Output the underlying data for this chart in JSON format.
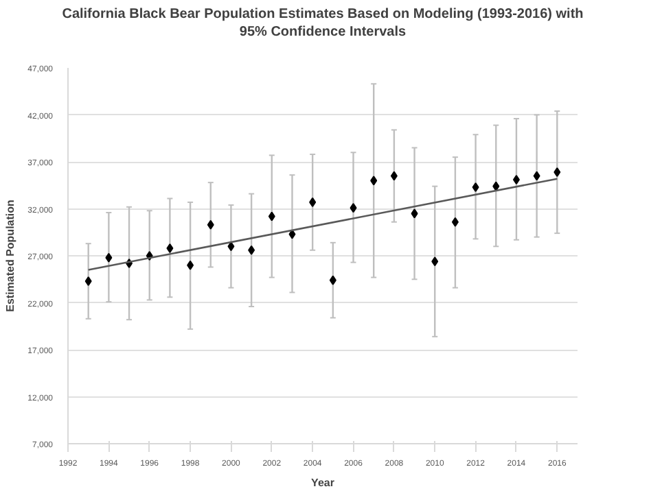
{
  "chart_data": {
    "type": "scatter",
    "title": "California Black Bear Population Estimates Based on Modeling (1993-2016) with 95% Confidence Intervals",
    "xlabel": "Year",
    "ylabel": "Estimated Population",
    "xlim": [
      1992,
      2017
    ],
    "xticks": [
      1992,
      1994,
      1996,
      1998,
      2000,
      2002,
      2004,
      2006,
      2008,
      2010,
      2012,
      2014,
      2016
    ],
    "ylim": [
      7000,
      47000
    ],
    "yticks": [
      {
        "value": 7000,
        "label": "7,000"
      },
      {
        "value": 12000,
        "label": "12,000"
      },
      {
        "value": 17000,
        "label": "17,000"
      },
      {
        "value": 22000,
        "label": "22,000"
      },
      {
        "value": 27000,
        "label": "27,000"
      },
      {
        "value": 32000,
        "label": "32,000"
      },
      {
        "value": 37000,
        "label": "37,000"
      },
      {
        "value": 42000,
        "label": "42,000"
      },
      {
        "value": 47000,
        "label": "47,000"
      }
    ],
    "grid": "y",
    "series": [
      {
        "color": "#000000",
        "marker": "diamond",
        "x": [
          1993,
          1994,
          1995,
          1996,
          1997,
          1998,
          1999,
          2000,
          2001,
          2002,
          2003,
          2004,
          2005,
          2006,
          2007,
          2008,
          2009,
          2010,
          2011,
          2012,
          2013,
          2014,
          2015,
          2016
        ],
        "values": [
          24300,
          26800,
          26200,
          27000,
          27800,
          26000,
          30300,
          28000,
          27600,
          31200,
          29300,
          32700,
          24400,
          32100,
          35000,
          35500,
          31500,
          26400,
          30600,
          34300,
          34400,
          35100,
          35500,
          35900
        ],
        "errors": [
          [
            20300,
            28300
          ],
          [
            22100,
            31600
          ],
          [
            20200,
            32200
          ],
          [
            22300,
            31800
          ],
          [
            22600,
            33100
          ],
          [
            19200,
            32700
          ],
          [
            25800,
            34800
          ],
          [
            23600,
            32400
          ],
          [
            21600,
            33600
          ],
          [
            24700,
            37700
          ],
          [
            23100,
            35600
          ],
          [
            27600,
            37800
          ],
          [
            20400,
            28400
          ],
          [
            26300,
            38000
          ],
          [
            24700,
            45300
          ],
          [
            30600,
            40400
          ],
          [
            24500,
            38500
          ],
          [
            18400,
            34400
          ],
          [
            23600,
            37500
          ],
          [
            28800,
            39900
          ],
          [
            28000,
            40900
          ],
          [
            28700,
            41600
          ],
          [
            29000,
            42000
          ],
          [
            29400,
            42400
          ]
        ]
      },
      {
        "type": "line",
        "color": "#595959",
        "x": [
          1993,
          2016
        ],
        "values": [
          25500,
          35200
        ]
      }
    ]
  }
}
